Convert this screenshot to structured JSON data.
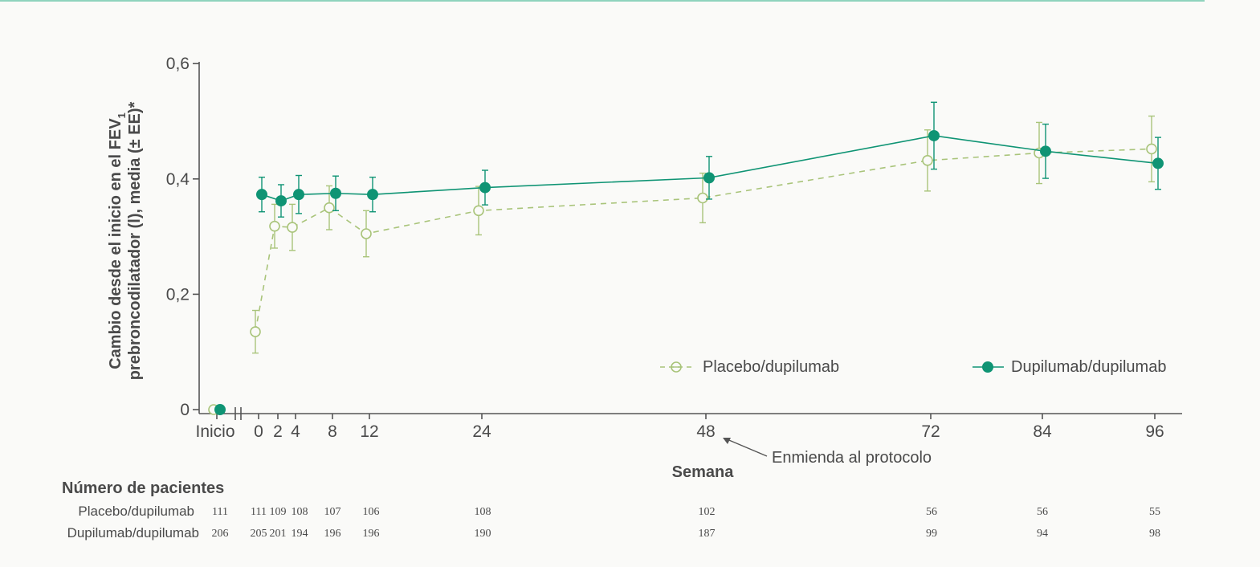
{
  "chart_data": {
    "type": "line",
    "ylabel_line1": "Cambio desde el inicio en el FEV",
    "ylabel_sub": "1",
    "ylabel_line2": "prebroncodilatador (l), media (± EE)*",
    "xlabel": "Semana",
    "ylim": [
      0,
      0.6
    ],
    "y_ticks": [
      "0",
      "0,2",
      "0,4",
      "0,6"
    ],
    "x_categories": [
      "Inicio",
      "0",
      "2",
      "4",
      "8",
      "12",
      "24",
      "48",
      "72",
      "84",
      "96"
    ],
    "series": [
      {
        "name": "Placebo/dupilumab",
        "color": "#a9c47a",
        "marker": "open-circle",
        "line": "dashed",
        "x": [
          "Inicio",
          "0",
          "2",
          "4",
          "8",
          "12",
          "24",
          "48",
          "72",
          "84",
          "96"
        ],
        "values": [
          0,
          0.135,
          0.318,
          0.316,
          0.35,
          0.305,
          0.345,
          0.367,
          0.432,
          0.445,
          0.452
        ],
        "errors": [
          0,
          0.037,
          0.038,
          0.04,
          0.038,
          0.04,
          0.042,
          0.043,
          0.053,
          0.053,
          0.057
        ]
      },
      {
        "name": "Dupilumab/dupilumab",
        "color": "#0f9474",
        "marker": "filled-circle",
        "line": "solid",
        "x": [
          "Inicio",
          "0",
          "2",
          "4",
          "8",
          "12",
          "24",
          "48",
          "72",
          "84",
          "96"
        ],
        "values": [
          0,
          0.373,
          0.362,
          0.373,
          0.375,
          0.373,
          0.385,
          0.402,
          0.475,
          0.448,
          0.427
        ],
        "errors": [
          0,
          0.03,
          0.028,
          0.033,
          0.03,
          0.03,
          0.03,
          0.037,
          0.058,
          0.047,
          0.045
        ]
      }
    ],
    "annotation": "Enmienda al protocolo",
    "annotation_x": "48",
    "legend_position": "bottom-right",
    "grid": false
  },
  "patients_table": {
    "title": "Número de pacientes",
    "rows": [
      {
        "label": "Placebo/dupilumab",
        "values": [
          "111",
          "111",
          "109",
          "108",
          "107",
          "106",
          "108",
          "102",
          "56",
          "56",
          "55"
        ]
      },
      {
        "label": "Dupilumab/dupilumab",
        "values": [
          "206",
          "205",
          "201",
          "194",
          "196",
          "196",
          "190",
          "187",
          "99",
          "94",
          "98"
        ]
      }
    ]
  },
  "colors": {
    "accent_rule": "#8fd3bd",
    "axis": "#555555"
  }
}
